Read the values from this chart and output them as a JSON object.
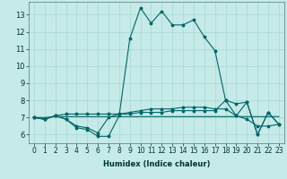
{
  "title": "",
  "xlabel": "Humidex (Indice chaleur)",
  "ylabel": "",
  "bg_color": "#c5eae8",
  "grid_color": "#a8d8d4",
  "line_color": "#006666",
  "xlim": [
    -0.5,
    23.5
  ],
  "ylim": [
    5.5,
    13.75
  ],
  "yticks": [
    6,
    7,
    8,
    9,
    10,
    11,
    12,
    13
  ],
  "xticks": [
    0,
    1,
    2,
    3,
    4,
    5,
    6,
    7,
    8,
    9,
    10,
    11,
    12,
    13,
    14,
    15,
    16,
    17,
    18,
    19,
    20,
    21,
    22,
    23
  ],
  "line1_x": [
    0,
    1,
    2,
    3,
    4,
    5,
    6,
    7,
    8,
    9,
    10,
    11,
    12,
    13,
    14,
    15,
    16,
    17,
    18,
    19,
    20,
    21,
    22,
    23
  ],
  "line1_y": [
    7.0,
    6.9,
    7.1,
    6.9,
    6.4,
    6.3,
    5.9,
    5.9,
    7.1,
    11.6,
    13.4,
    12.5,
    13.2,
    12.4,
    12.4,
    12.7,
    11.7,
    10.9,
    8.0,
    7.1,
    7.9,
    6.0,
    7.3,
    6.6
  ],
  "line2_x": [
    0,
    1,
    2,
    3,
    4,
    5,
    6,
    7,
    8,
    9,
    10,
    11,
    12,
    13,
    14,
    15,
    16,
    17,
    18,
    19,
    20,
    21,
    22,
    23
  ],
  "line2_y": [
    7.0,
    6.9,
    7.1,
    6.9,
    6.5,
    6.4,
    6.1,
    7.0,
    7.2,
    7.3,
    7.4,
    7.5,
    7.5,
    7.5,
    7.6,
    7.6,
    7.6,
    7.5,
    7.5,
    7.1,
    6.9,
    6.5,
    6.5,
    6.6
  ],
  "line3_x": [
    0,
    1,
    2,
    3,
    4,
    5,
    6,
    7,
    8,
    9,
    10,
    11,
    12,
    13,
    14,
    15,
    16,
    17,
    18,
    19,
    20,
    21,
    22,
    23
  ],
  "line3_y": [
    7.0,
    7.0,
    7.05,
    7.05,
    7.05,
    7.05,
    7.05,
    7.05,
    7.05,
    7.05,
    7.05,
    7.05,
    7.05,
    7.05,
    7.05,
    7.05,
    7.05,
    7.05,
    7.05,
    7.05,
    7.05,
    7.05,
    7.05,
    7.05
  ],
  "line4_x": [
    0,
    1,
    2,
    3,
    4,
    5,
    6,
    7,
    8,
    9,
    10,
    11,
    12,
    13,
    14,
    15,
    16,
    17,
    18,
    19,
    20,
    21,
    22,
    23
  ],
  "line4_y": [
    7.0,
    6.9,
    7.1,
    7.2,
    7.2,
    7.2,
    7.2,
    7.2,
    7.2,
    7.2,
    7.3,
    7.3,
    7.3,
    7.4,
    7.4,
    7.4,
    7.4,
    7.4,
    8.0,
    7.8,
    7.9,
    6.0,
    7.3,
    6.6
  ],
  "tick_fontsize": 5.5,
  "xlabel_fontsize": 6.0,
  "xlabel_color": "#003333",
  "spine_color": "#557777",
  "tick_color": "#003333"
}
